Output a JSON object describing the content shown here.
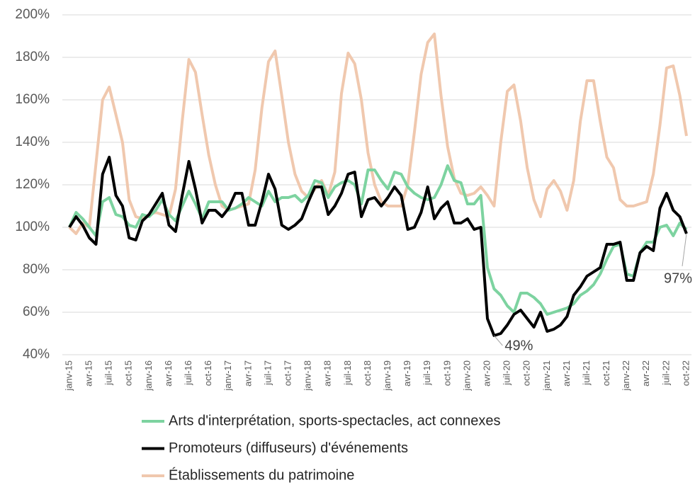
{
  "chart_data": {
    "type": "line",
    "categories": [
      "janv-15",
      null,
      null,
      "avr-15",
      null,
      null,
      "juil-15",
      null,
      null,
      "oct-15",
      null,
      null,
      "janv-16",
      null,
      null,
      "avr-16",
      null,
      null,
      "juil-16",
      null,
      null,
      "oct-16",
      null,
      null,
      "janv-17",
      null,
      null,
      "avr-17",
      null,
      null,
      "juil-17",
      null,
      null,
      "oct-17",
      null,
      null,
      "janv-18",
      null,
      null,
      "avr-18",
      null,
      null,
      "juil-18",
      null,
      null,
      "oct-18",
      null,
      null,
      "janv-19",
      null,
      null,
      "avr-19",
      null,
      null,
      "juil-19",
      null,
      null,
      "oct-19",
      null,
      null,
      "janv-20",
      null,
      null,
      "avr-20",
      null,
      null,
      "juil-20",
      null,
      null,
      "oct-20",
      null,
      null,
      "janv-21",
      null,
      null,
      "avr-21",
      null,
      null,
      "juil-21",
      null,
      null,
      "oct-21",
      null,
      null,
      "janv-22",
      null,
      null,
      "avr-22",
      null,
      null,
      "juil-22",
      null,
      null,
      "oct-22"
    ],
    "series": [
      {
        "name": "Établissements du patrimoine",
        "color": "#f0c8ae",
        "values": [
          100,
          97,
          102,
          100,
          130,
          160,
          166,
          153,
          140,
          113,
          105,
          104,
          106,
          107,
          106,
          105,
          118,
          150,
          179,
          173,
          153,
          134,
          120,
          110,
          108,
          109,
          110,
          111,
          127,
          156,
          178,
          183,
          162,
          140,
          125,
          117,
          114,
          118,
          122,
          115,
          126,
          163,
          182,
          177,
          160,
          135,
          120,
          112,
          110,
          110,
          110,
          120,
          145,
          172,
          187,
          191,
          162,
          138,
          123,
          116,
          115,
          116,
          119,
          115,
          110,
          140,
          164,
          167,
          150,
          128,
          113,
          105,
          118,
          122,
          117,
          108,
          122,
          150,
          169,
          169,
          150,
          133,
          128,
          113,
          110,
          110,
          111,
          112,
          125,
          148,
          175,
          176,
          162,
          143
        ]
      },
      {
        "name": "Arts d'interprétation, sports-spectacles, act connexes",
        "color": "#7dd3a0",
        "values": [
          100,
          107,
          104,
          100,
          96,
          112,
          114,
          106,
          105,
          101,
          100,
          106,
          105,
          108,
          113,
          106,
          103,
          110,
          117,
          111,
          104,
          112,
          112,
          112,
          108,
          109,
          111,
          114,
          112,
          110,
          117,
          112,
          114,
          114,
          115,
          112,
          115,
          122,
          121,
          114,
          119,
          121,
          122,
          120,
          111,
          127,
          127,
          122,
          118,
          126,
          125,
          119,
          116,
          114,
          113,
          114,
          120,
          129,
          122,
          121,
          111,
          111,
          115,
          81,
          71,
          68,
          63,
          60,
          69,
          69,
          67,
          64,
          59,
          60,
          61,
          62,
          64,
          68,
          70,
          73,
          78,
          85,
          91,
          92,
          78,
          77,
          88,
          93,
          93,
          100,
          101,
          96,
          102,
          99
        ]
      },
      {
        "name": "Promoteurs (diffuseurs) d'événements",
        "color": "#000000",
        "values": [
          100,
          105,
          101,
          95,
          92,
          125,
          133,
          115,
          110,
          95,
          94,
          103,
          106,
          111,
          116,
          101,
          98,
          115,
          131,
          118,
          102,
          108,
          108,
          105,
          109,
          116,
          116,
          101,
          101,
          112,
          125,
          118,
          101,
          99,
          101,
          104,
          112,
          119,
          119,
          106,
          110,
          116,
          125,
          126,
          105,
          113,
          114,
          110,
          114,
          119,
          115,
          99,
          100,
          107,
          119,
          104,
          109,
          112,
          102,
          102,
          104,
          99,
          100,
          57,
          49,
          50,
          54,
          59,
          61,
          57,
          53,
          60,
          51,
          52,
          54,
          58,
          68,
          72,
          77,
          79,
          81,
          92,
          92,
          93,
          75,
          75,
          88,
          91,
          89,
          109,
          116,
          108,
          105,
          97
        ],
        "value_labels": [
          null,
          null,
          null,
          null,
          null,
          null,
          null,
          null,
          null,
          null,
          null,
          null,
          null,
          null,
          null,
          null,
          null,
          null,
          null,
          null,
          null,
          null,
          null,
          null,
          null,
          null,
          null,
          null,
          null,
          null,
          null,
          null,
          null,
          null,
          null,
          null,
          null,
          null,
          null,
          null,
          null,
          null,
          null,
          null,
          null,
          null,
          null,
          null,
          null,
          null,
          null,
          null,
          null,
          null,
          null,
          null,
          null,
          null,
          null,
          null,
          null,
          null,
          null,
          null,
          "49%",
          null,
          null,
          null,
          null,
          null,
          null,
          null,
          null,
          null,
          null,
          null,
          null,
          null,
          null,
          null,
          null,
          null,
          null,
          null,
          null,
          null,
          null,
          null,
          null,
          null,
          null,
          null,
          null,
          "97%"
        ]
      }
    ],
    "legend_order": [
      1,
      2,
      0
    ],
    "ylim": [
      40,
      200
    ],
    "yticks": [
      {
        "value": 40,
        "label": "40%"
      },
      {
        "value": 60,
        "label": "60%"
      },
      {
        "value": 80,
        "label": "80%"
      },
      {
        "value": 100,
        "label": "100%"
      },
      {
        "value": 120,
        "label": "120%"
      },
      {
        "value": 140,
        "label": "140%"
      },
      {
        "value": 160,
        "label": "160%"
      },
      {
        "value": 180,
        "label": "180%"
      },
      {
        "value": 200,
        "label": "200%"
      }
    ],
    "grid": true,
    "legend": "bottom"
  }
}
